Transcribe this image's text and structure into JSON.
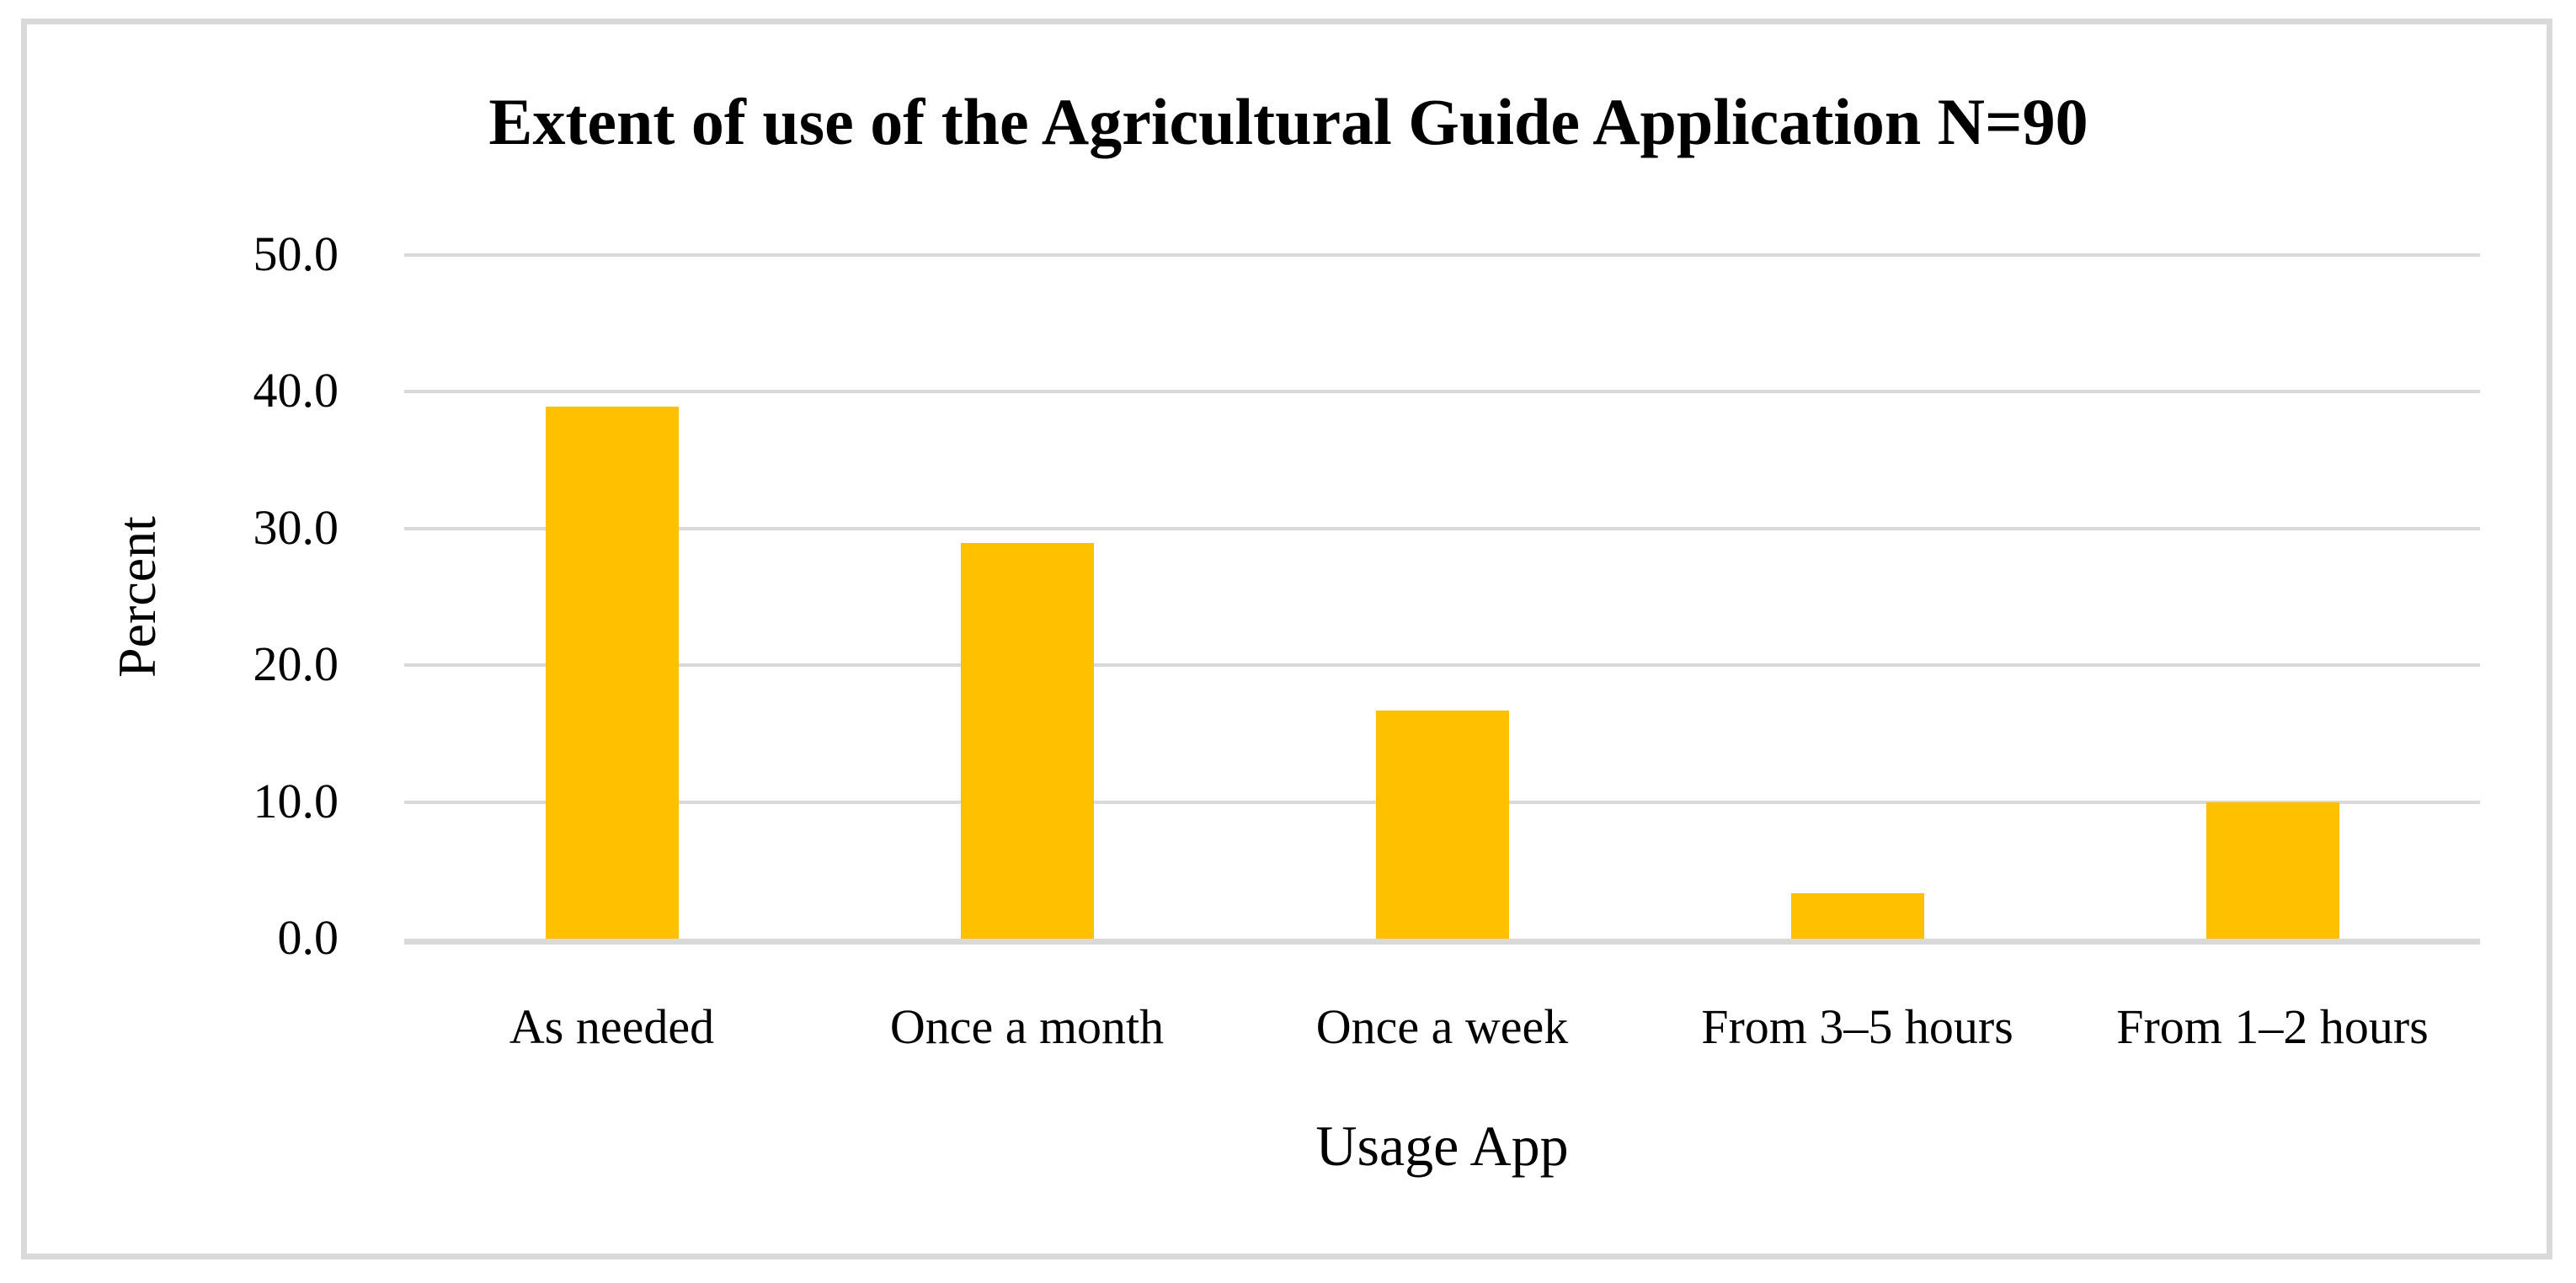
{
  "chart_data": {
    "type": "bar",
    "title": "Extent of use of the Agricultural Guide Application N=90",
    "categories": [
      "As needed",
      "Once a month",
      "Once a week",
      "From 3–5 hours",
      "From 1–2 hours"
    ],
    "values": [
      38.9,
      28.9,
      16.7,
      3.3,
      10.0
    ],
    "xlabel": "Usage App",
    "ylabel": "Percent",
    "ylim": [
      0,
      50
    ],
    "ytick_step": 10,
    "ytick_labels": [
      "0.0",
      "10.0",
      "20.0",
      "30.0",
      "40.0",
      "50.0"
    ],
    "grid": true,
    "legend_position": "none",
    "bar_color": "#FFC000",
    "gridline_color": "#D9D9D9",
    "axis_line_color": "#D9D9D9",
    "frame_color": "#D9D9D9",
    "text_color": "#000000",
    "background_color": "#FFFFFF"
  }
}
